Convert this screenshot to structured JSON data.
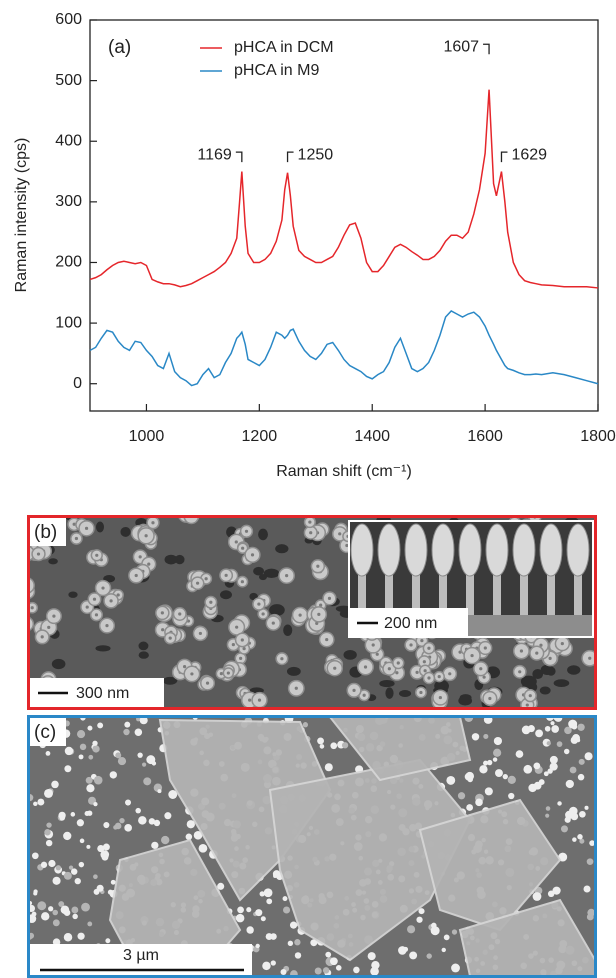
{
  "chart_data": {
    "type": "line",
    "panel_label": "(a)",
    "x_label": "Raman shift (cm⁻¹)",
    "y_label": "Raman intensity (cps)",
    "xlim": [
      900,
      1800
    ],
    "xticks": [
      1000,
      1200,
      1400,
      1600,
      1800
    ],
    "ylim": [
      -45,
      600
    ],
    "yticks": [
      0,
      100,
      200,
      300,
      400,
      500,
      600
    ],
    "legend": "upper left",
    "x": [
      900,
      910,
      920,
      930,
      940,
      950,
      960,
      970,
      980,
      990,
      1000,
      1010,
      1020,
      1030,
      1040,
      1050,
      1060,
      1070,
      1080,
      1090,
      1100,
      1110,
      1120,
      1130,
      1140,
      1150,
      1160,
      1165,
      1169,
      1175,
      1180,
      1190,
      1200,
      1210,
      1220,
      1230,
      1240,
      1245,
      1250,
      1255,
      1260,
      1270,
      1280,
      1290,
      1300,
      1310,
      1320,
      1330,
      1340,
      1350,
      1360,
      1370,
      1380,
      1390,
      1400,
      1410,
      1420,
      1430,
      1440,
      1450,
      1460,
      1470,
      1480,
      1490,
      1500,
      1510,
      1520,
      1530,
      1540,
      1550,
      1560,
      1570,
      1580,
      1590,
      1600,
      1607,
      1615,
      1620,
      1629,
      1635,
      1640,
      1650,
      1660,
      1670,
      1680,
      1690,
      1700,
      1720,
      1740,
      1760,
      1780,
      1800
    ],
    "series": [
      {
        "name": "pHCA in DCM",
        "color": "#e5262b",
        "values": [
          172,
          175,
          180,
          188,
          195,
          200,
          202,
          200,
          198,
          200,
          195,
          172,
          168,
          165,
          165,
          163,
          160,
          162,
          165,
          170,
          175,
          180,
          185,
          192,
          200,
          215,
          240,
          300,
          350,
          260,
          215,
          200,
          200,
          205,
          215,
          235,
          270,
          320,
          348,
          310,
          260,
          220,
          210,
          205,
          200,
          200,
          205,
          210,
          225,
          245,
          262,
          265,
          240,
          200,
          185,
          185,
          195,
          210,
          225,
          230,
          225,
          218,
          212,
          205,
          205,
          210,
          220,
          235,
          245,
          245,
          240,
          250,
          280,
          320,
          380,
          485,
          330,
          310,
          350,
          300,
          250,
          200,
          180,
          170,
          167,
          165,
          163,
          162,
          160,
          160,
          160,
          158
        ]
      },
      {
        "name": "pHCA in M9",
        "color": "#2a88c6",
        "values": [
          55,
          60,
          75,
          88,
          85,
          70,
          60,
          55,
          70,
          68,
          55,
          45,
          30,
          25,
          50,
          20,
          10,
          5,
          -3,
          0,
          15,
          25,
          10,
          15,
          35,
          50,
          75,
          80,
          85,
          65,
          40,
          35,
          30,
          40,
          60,
          85,
          80,
          75,
          80,
          88,
          90,
          70,
          55,
          45,
          40,
          50,
          65,
          68,
          55,
          40,
          30,
          25,
          20,
          12,
          8,
          15,
          20,
          35,
          60,
          75,
          50,
          25,
          20,
          25,
          35,
          55,
          80,
          110,
          120,
          115,
          110,
          115,
          118,
          110,
          95,
          80,
          65,
          55,
          40,
          30,
          25,
          22,
          18,
          15,
          15,
          16,
          15,
          18,
          15,
          10,
          5,
          0
        ]
      }
    ],
    "annotations": [
      {
        "text": "1169",
        "x": 1169,
        "y": 382
      },
      {
        "text": "1250",
        "x": 1250,
        "y": 382
      },
      {
        "text": "1607",
        "x": 1607,
        "y": 560
      },
      {
        "text": "1629",
        "x": 1629,
        "y": 382
      }
    ]
  },
  "panels": [
    {
      "label": "(b)",
      "scale_bar": "300 nm",
      "inset_scale_bar": "200 nm",
      "border_color": "#e3262a"
    },
    {
      "label": "(c)",
      "scale_bar": "3 µm",
      "border_color": "#2a88c8"
    }
  ]
}
